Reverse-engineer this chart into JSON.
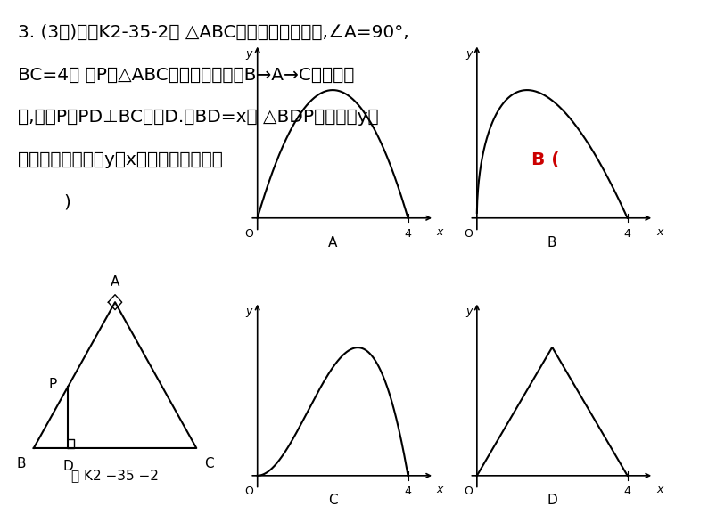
{
  "bg_color": "#ffffff",
  "text_color": "#000000",
  "answer_color": "#cc0000",
  "title_lines": [
    "3. (3分)如图K2-35-2， △ABC是等腼直角三角形,∠A=90°,",
    "BC=4， 点P是△ABC边上一动点，沿B→A→C的路径移",
    "动,过点P作PD⊥BC于点D.讽BD=x， △BDP的面积为y，",
    "则下列能大致反映y与x函数关系的图象是"
  ],
  "answer_text": "B (",
  "close_paren": ")",
  "fig_label": "图 K2 −35 −2",
  "graph_labels": [
    "A",
    "B",
    "C",
    "D"
  ]
}
